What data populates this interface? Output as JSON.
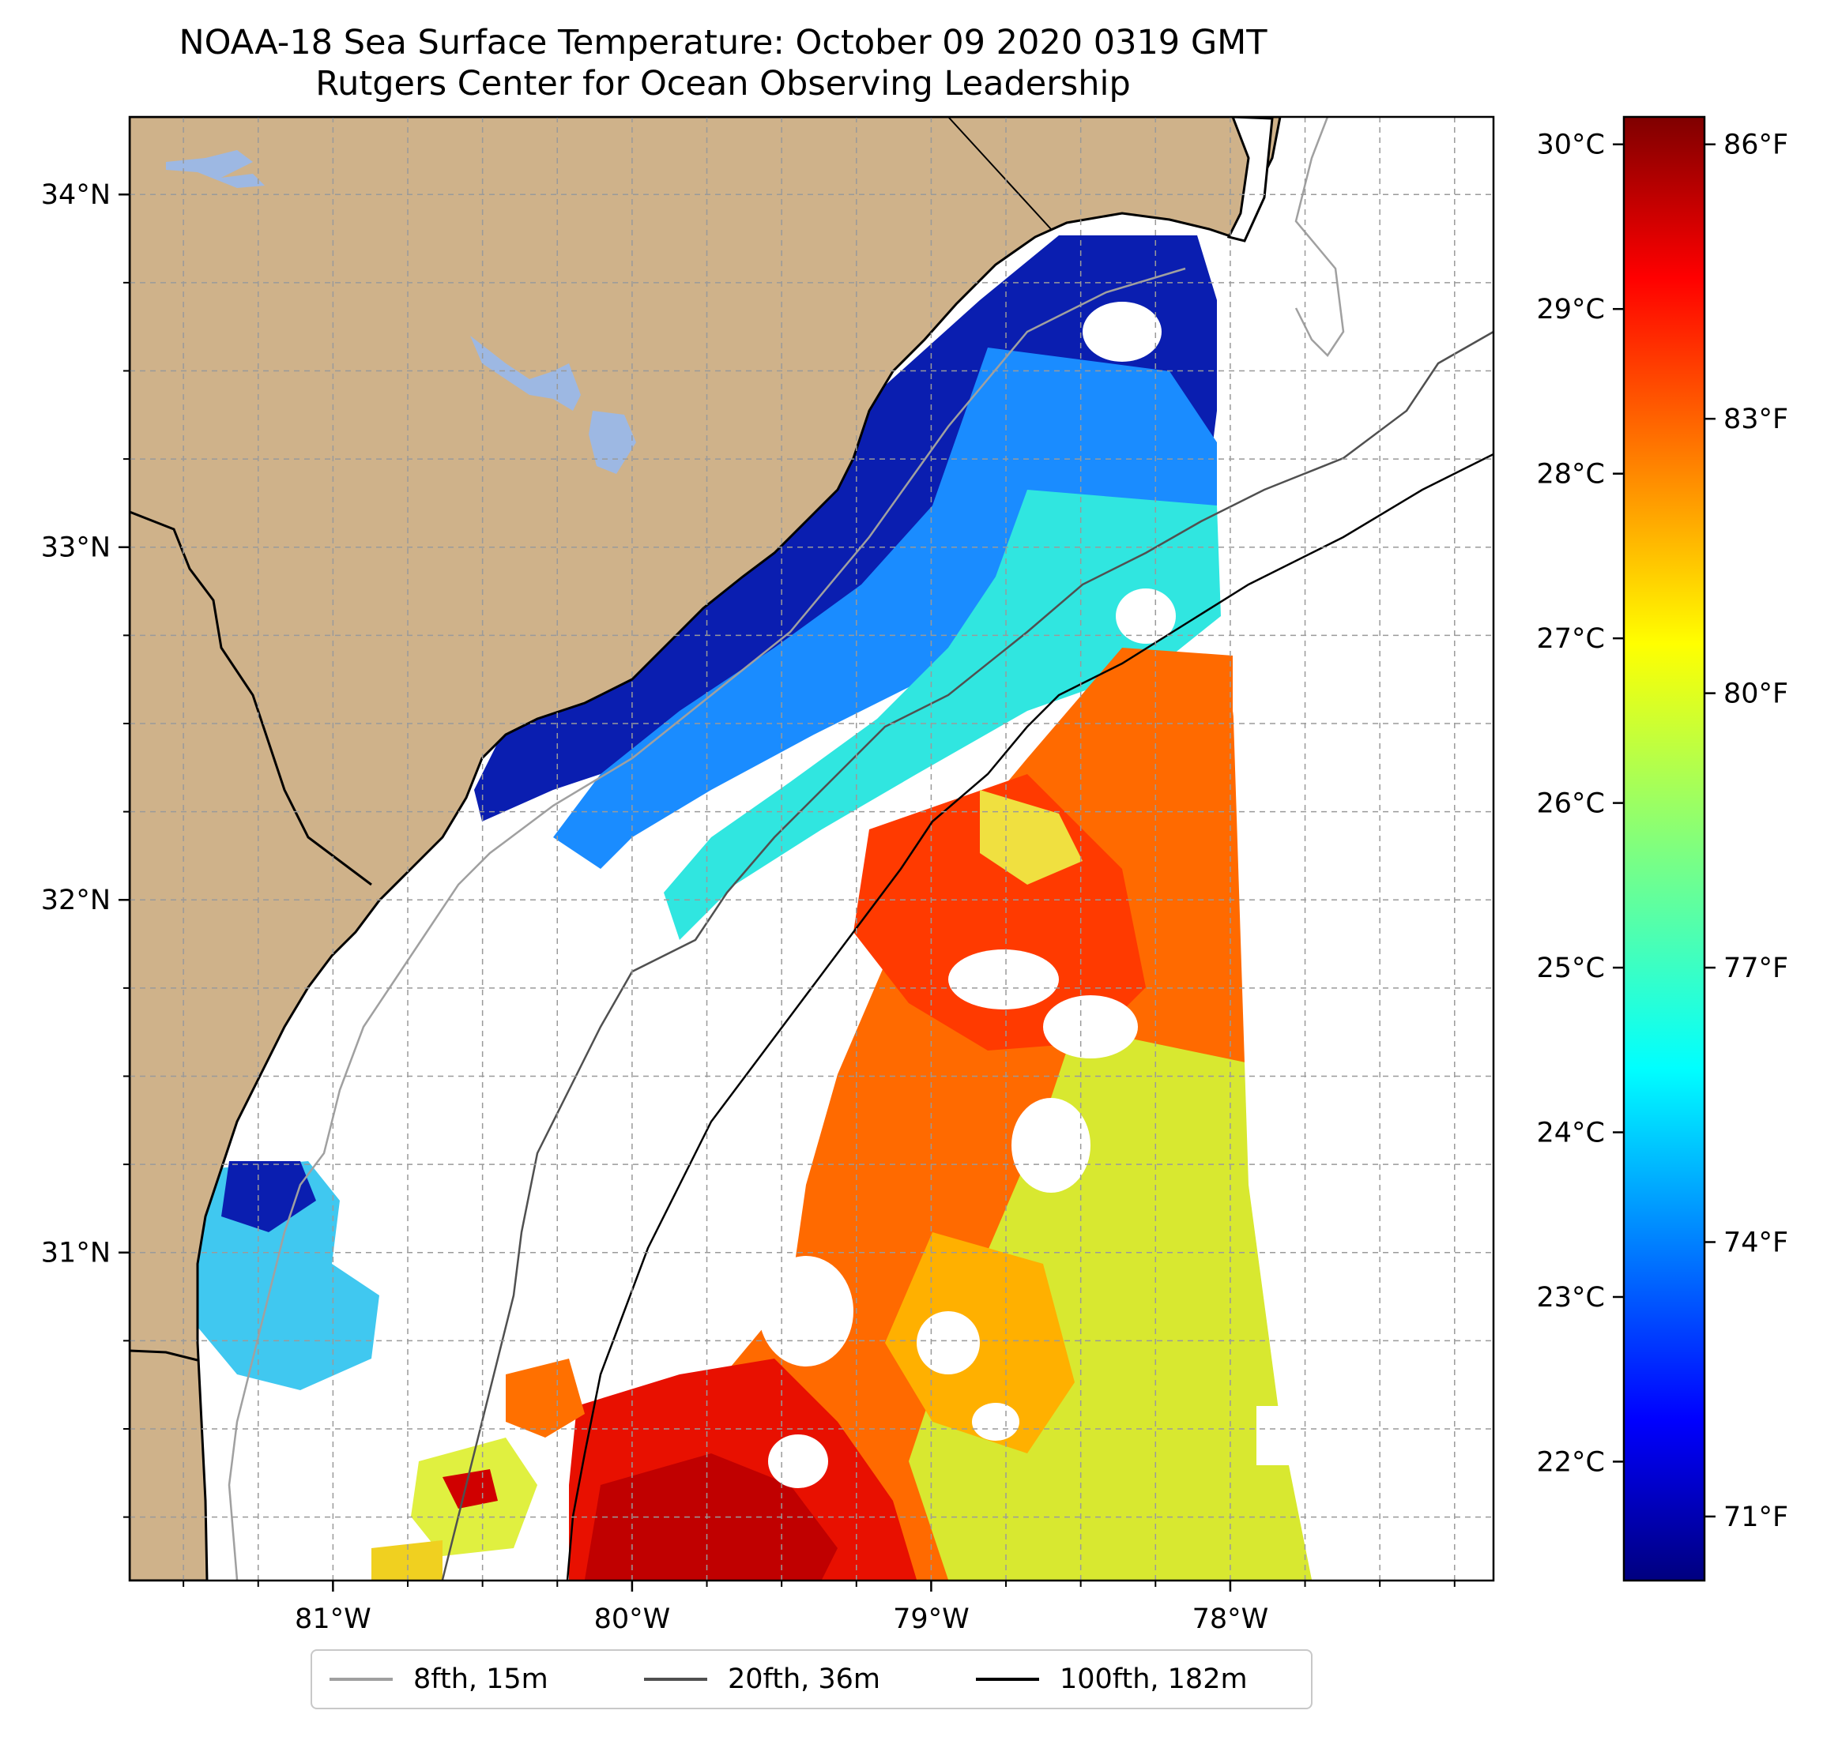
{
  "header": {
    "title": "NOAA-18 Sea Surface Temperature: October 09 2020 0319 GMT",
    "subtitle": "Rutgers Center for Ocean Observing Leadership"
  },
  "map": {
    "lon_range": [
      -81.68,
      -77.12
    ],
    "lat_range": [
      30.07,
      34.22
    ],
    "lon_ticks": [
      {
        "value": -81,
        "label": "81°W"
      },
      {
        "value": -80,
        "label": "80°W"
      },
      {
        "value": -79,
        "label": "79°W"
      },
      {
        "value": -78,
        "label": "78°W"
      }
    ],
    "lat_ticks": [
      {
        "value": 34,
        "label": "34°N"
      },
      {
        "value": 33,
        "label": "33°N"
      },
      {
        "value": 32,
        "label": "32°N"
      },
      {
        "value": 31,
        "label": "31°N"
      }
    ],
    "gridlines": true,
    "colors": {
      "land": "#cfb28a",
      "lakes": "#9db8e3",
      "no_data": "#ffffff"
    }
  },
  "colorbar": {
    "colormap": "jet",
    "celsius_ticks": [
      {
        "value": 22,
        "label": "22°C"
      },
      {
        "value": 23,
        "label": "23°C"
      },
      {
        "value": 24,
        "label": "24°C"
      },
      {
        "value": 25,
        "label": "25°C"
      },
      {
        "value": 26,
        "label": "26°C"
      },
      {
        "value": 27,
        "label": "27°C"
      },
      {
        "value": 28,
        "label": "28°C"
      },
      {
        "value": 29,
        "label": "29°C"
      },
      {
        "value": 30,
        "label": "30°C"
      }
    ],
    "fahrenheit_ticks": [
      {
        "value": 71,
        "label": "71°F"
      },
      {
        "value": 74,
        "label": "74°F"
      },
      {
        "value": 77,
        "label": "77°F"
      },
      {
        "value": 80,
        "label": "80°F"
      },
      {
        "value": 83,
        "label": "83°F"
      },
      {
        "value": 86,
        "label": "86°F"
      }
    ],
    "range_f": [
      70.3,
      86.3
    ]
  },
  "legend": {
    "items": [
      {
        "label": "8fth, 15m",
        "color": "#a0a0a0"
      },
      {
        "label": "20fth, 36m",
        "color": "#505050"
      },
      {
        "label": "100fth, 182m",
        "color": "#000000"
      }
    ]
  }
}
